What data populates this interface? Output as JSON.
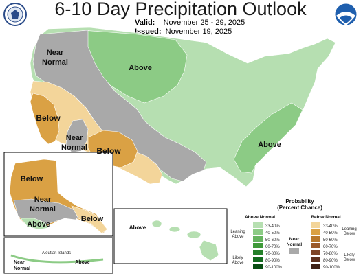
{
  "title": "6-10 Day Precipitation Outlook",
  "valid_label": "Valid:",
  "valid_dates": "November 25 - 29, 2025",
  "issued_label": "Issued:",
  "issued_date": "November 19, 2025",
  "colors": {
    "above_33_40": "#b6dfb1",
    "above_40_50": "#8ccb85",
    "above_50_60": "#65b35e",
    "near_normal": "#a9a9a9",
    "below_33_40": "#f3d59a",
    "below_40_50": "#daa144",
    "below_50_60": "#b8782c"
  },
  "map_labels": {
    "near_normal_nw": [
      "Near",
      "Normal"
    ],
    "above_north": "Above",
    "below_ca": "Below",
    "near_normal_sw": [
      "Near",
      "Normal"
    ],
    "below_sw": "Below",
    "above_se": "Above",
    "below_ak": "Below",
    "near_normal_ak": [
      "Near",
      "Normal"
    ],
    "above_ak": "Above",
    "below_ak_se": "Below",
    "above_hi": "Above",
    "aleutian_title": "Aleutian Islands",
    "aleutian_near_normal": [
      "Near",
      "Normal"
    ],
    "aleutian_above": "Above"
  },
  "legend": {
    "title": [
      "Probability",
      "(Percent Chance)"
    ],
    "above_header": "Above Normal",
    "below_header": "Below Normal",
    "near_label": [
      "Near",
      "Normal"
    ],
    "leaning_above": [
      "Leaning",
      "Above"
    ],
    "likely_above": [
      "Likely",
      "Above"
    ],
    "leaning_below": [
      "Leaning",
      "Below"
    ],
    "likely_below": [
      "Likely",
      "Below"
    ],
    "above_bins": [
      "33-40%",
      "40-50%",
      "50-60%",
      "60-70%",
      "70-80%",
      "80-90%",
      "90-100%"
    ],
    "below_bins": [
      "33-40%",
      "40-50%",
      "50-60%",
      "60-70%",
      "70-80%",
      "80-90%",
      "90-100%"
    ],
    "above_colors": [
      "#b6dfb1",
      "#8ccb85",
      "#65b35e",
      "#3f9a39",
      "#24802a",
      "#136b1f",
      "#0a4f14"
    ],
    "below_colors": [
      "#f3d59a",
      "#daa144",
      "#b8782c",
      "#9b5a2a",
      "#7e4426",
      "#5e311e",
      "#3f2116"
    ],
    "near_color": "#a9a9a9"
  }
}
